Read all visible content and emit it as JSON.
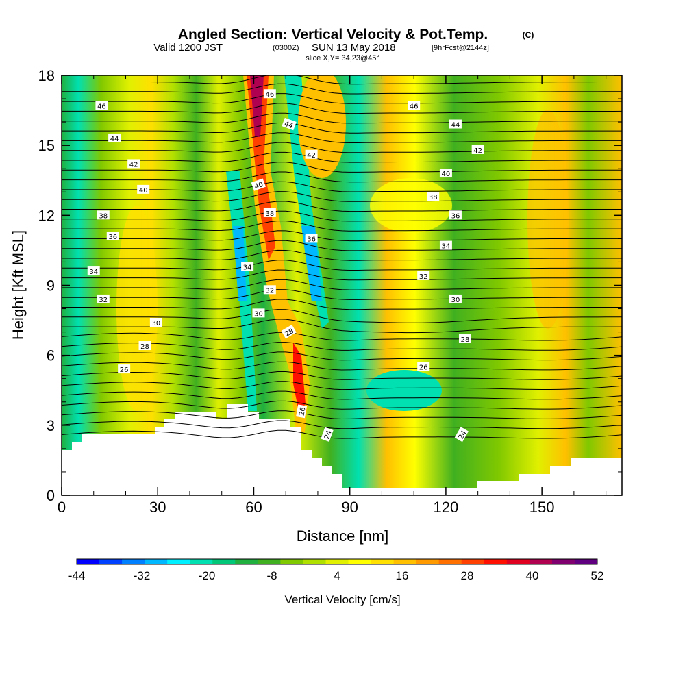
{
  "title": {
    "main": "Angled Section: Vertical Velocity & Pot.Temp.",
    "main_tag": "(C)",
    "valid_a": "Valid 1200 JST",
    "valid_b": "(0300Z)",
    "valid_c": "SUN 13 May 2018",
    "valid_d": "[9hrFcst@2144z]",
    "slice": "slice X,Y= 34,23@45°"
  },
  "chart_data": {
    "type": "heatmap",
    "xlabel": "Distance [nm]",
    "ylabel": "Height [Kft MSL]",
    "xlim": [
      0,
      175
    ],
    "ylim": [
      0,
      18
    ],
    "x_ticks": [
      "0",
      "30",
      "60",
      "90",
      "120",
      "150"
    ],
    "y_ticks": [
      "0",
      "3",
      "6",
      "9",
      "12",
      "15",
      "18"
    ],
    "colorbar": {
      "label": "Vertical Velocity [cm/s]",
      "tick_labels": [
        "-44",
        "-32",
        "-20",
        "-8",
        "4",
        "16",
        "28",
        "40",
        "52"
      ],
      "colors": [
        "#0000ff",
        "#0040ff",
        "#0080ff",
        "#00b8ff",
        "#00f0ff",
        "#00e0b0",
        "#00c878",
        "#20b040",
        "#40b020",
        "#80c800",
        "#b0e000",
        "#e0f000",
        "#ffff00",
        "#ffe000",
        "#ffc000",
        "#ff9a00",
        "#ff7000",
        "#ff4000",
        "#ff1000",
        "#e00020",
        "#b00050",
        "#800070",
        "#600080"
      ]
    },
    "contour_labels": [
      {
        "text": "46",
        "x": 12.5,
        "y": 16.7
      },
      {
        "text": "44",
        "x": 16.5,
        "y": 15.3
      },
      {
        "text": "42",
        "x": 22.5,
        "y": 14.2
      },
      {
        "text": "40",
        "x": 25.5,
        "y": 13.1
      },
      {
        "text": "38",
        "x": 13,
        "y": 12.0
      },
      {
        "text": "36",
        "x": 16,
        "y": 11.1
      },
      {
        "text": "34",
        "x": 10,
        "y": 9.6
      },
      {
        "text": "32",
        "x": 13,
        "y": 8.4
      },
      {
        "text": "30",
        "x": 29.5,
        "y": 7.4
      },
      {
        "text": "28",
        "x": 26,
        "y": 6.4
      },
      {
        "text": "26",
        "x": 19.5,
        "y": 5.4
      },
      {
        "text": "46",
        "x": 65,
        "y": 17.2
      },
      {
        "text": "44",
        "x": 71,
        "y": 15.9,
        "rot": 20
      },
      {
        "text": "42",
        "x": 78,
        "y": 14.6
      },
      {
        "text": "40",
        "x": 61.5,
        "y": 13.3,
        "rot": -20
      },
      {
        "text": "38",
        "x": 65,
        "y": 12.1
      },
      {
        "text": "36",
        "x": 78,
        "y": 11.0
      },
      {
        "text": "34",
        "x": 58,
        "y": 9.8
      },
      {
        "text": "32",
        "x": 65,
        "y": 8.8
      },
      {
        "text": "30",
        "x": 61.5,
        "y": 7.8
      },
      {
        "text": "28",
        "x": 71,
        "y": 7.0,
        "rot": -30
      },
      {
        "text": "26",
        "x": 75,
        "y": 3.6,
        "rot": -80
      },
      {
        "text": "24",
        "x": 83,
        "y": 2.6,
        "rot": -70
      },
      {
        "text": "46",
        "x": 110,
        "y": 16.7
      },
      {
        "text": "44",
        "x": 123,
        "y": 15.9
      },
      {
        "text": "42",
        "x": 130,
        "y": 14.8
      },
      {
        "text": "40",
        "x": 120,
        "y": 13.8
      },
      {
        "text": "38",
        "x": 116,
        "y": 12.8
      },
      {
        "text": "36",
        "x": 123,
        "y": 12.0
      },
      {
        "text": "34",
        "x": 120,
        "y": 10.7
      },
      {
        "text": "32",
        "x": 113,
        "y": 9.4
      },
      {
        "text": "30",
        "x": 123,
        "y": 8.4
      },
      {
        "text": "28",
        "x": 126,
        "y": 6.7
      },
      {
        "text": "26",
        "x": 113,
        "y": 5.5
      },
      {
        "text": "24",
        "x": 125,
        "y": 2.6,
        "rot": -60
      }
    ]
  }
}
